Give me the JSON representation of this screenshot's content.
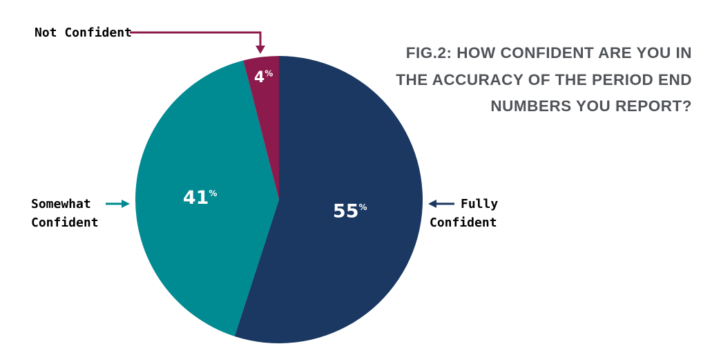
{
  "chart_data": {
    "type": "pie",
    "title_lines": [
      "FIG.2: HOW CONFIDENT ARE YOU IN",
      "THE ACCURACY OF THE PERIOD END",
      "NUMBERS YOU REPORT?"
    ],
    "slices": [
      {
        "name": "Fully Confident",
        "value": 55,
        "label": "55",
        "color": "#1a3861",
        "label_color": "#1a3861",
        "label_lines": [
          "Fully",
          "Confident"
        ]
      },
      {
        "name": "Somewhat Confident",
        "value": 41,
        "label": "41",
        "color": "#008a91",
        "label_color": "#1a3861",
        "label_lines": [
          "Somewhat",
          "Confident"
        ]
      },
      {
        "name": "Not Confident",
        "value": 4,
        "label": "4",
        "color": "#8c1a4d",
        "label_color": "#1a3861",
        "label_lines": [
          "Not Confident"
        ]
      }
    ],
    "value_suffix": "%",
    "start_angle_deg": 0,
    "direction": "clockwise",
    "legend": "callout-labels"
  }
}
